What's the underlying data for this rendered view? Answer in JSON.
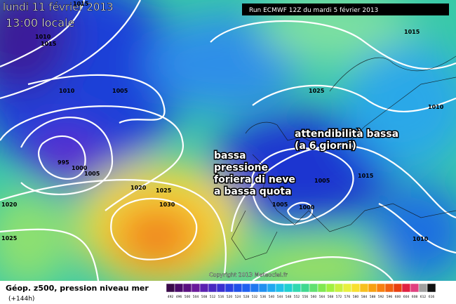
{
  "header": {
    "date": "lundi 11 février 2013",
    "time": "13:00 locale",
    "run": "Run ECMWF 12Z du mardi 5 février 2013"
  },
  "annotations": {
    "reliability": [
      "attendibilità bassa",
      "(a 6 giorni)"
    ],
    "low": [
      "bassa",
      "pressione",
      "foriera di neve",
      "a bassa quota"
    ]
  },
  "isobar_labels": [
    "1015",
    "1010",
    "1015",
    "1010",
    "1005",
    "995",
    "1000",
    "1005",
    "1020",
    "1025",
    "1030",
    "1020",
    "1025",
    "1015",
    "1025",
    "1010",
    "1005",
    "1005",
    "1000",
    "1015",
    "1010"
  ],
  "copyright": "Copyright 2013 Meteociel.fr",
  "footer": {
    "title": "Géop. z500, pression niveau mer",
    "lead": "(+144h)"
  },
  "scale": [
    "492",
    "496",
    "500",
    "504",
    "508",
    "512",
    "516",
    "520",
    "524",
    "528",
    "532",
    "536",
    "540",
    "544",
    "548",
    "552",
    "556",
    "560",
    "564",
    "568",
    "572",
    "576",
    "580",
    "584",
    "588",
    "592",
    "596",
    "600",
    "604",
    "608",
    "612",
    "616"
  ]
}
